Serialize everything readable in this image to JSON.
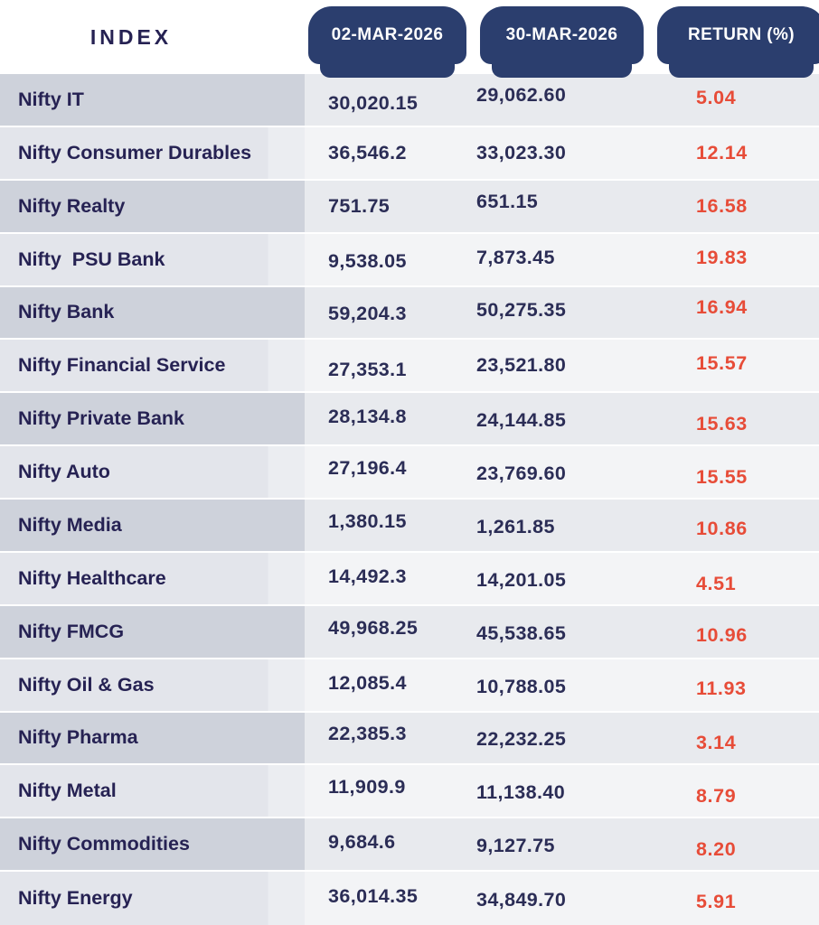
{
  "header": {
    "index_label": "INDEX",
    "columns": [
      "02-MAR-2026",
      "30-MAR-2026",
      "RETURN (%)"
    ]
  },
  "rows": [
    {
      "label": "Nifty IT",
      "start": "30,020.15",
      "end": "29,062.60",
      "ret": "5.04"
    },
    {
      "label": "Nifty Consumer Durables",
      "start": "36,546.2",
      "end": "33,023.30",
      "ret": "12.14"
    },
    {
      "label": "Nifty Realty",
      "start": "751.75",
      "end": "651.15",
      "ret": "16.58"
    },
    {
      "label": "Nifty  PSU Bank",
      "start": "9,538.05",
      "end": "7,873.45",
      "ret": "19.83"
    },
    {
      "label": "Nifty Bank",
      "start": "59,204.3",
      "end": "50,275.35",
      "ret": "16.94"
    },
    {
      "label": "Nifty Financial Service",
      "start": "27,353.1",
      "end": "23,521.80",
      "ret": "15.57"
    },
    {
      "label": "Nifty Private Bank",
      "start": "28,134.8",
      "end": "24,144.85",
      "ret": "15.63"
    },
    {
      "label": "Nifty Auto",
      "start": "27,196.4",
      "end": "23,769.60",
      "ret": "15.55"
    },
    {
      "label": "Nifty Media",
      "start": "1,380.15",
      "end": "1,261.85",
      "ret": "10.86"
    },
    {
      "label": "Nifty Healthcare",
      "start": "14,492.3",
      "end": "14,201.05",
      "ret": "4.51"
    },
    {
      "label": "Nifty FMCG",
      "start": "49,968.25",
      "end": "45,538.65",
      "ret": "10.96"
    },
    {
      "label": "Nifty Oil & Gas",
      "start": "12,085.4",
      "end": "10,788.05",
      "ret": "11.93"
    },
    {
      "label": "Nifty Pharma",
      "start": "22,385.3",
      "end": "22,232.25",
      "ret": "3.14"
    },
    {
      "label": "Nifty Metal",
      "start": "11,909.9",
      "end": "11,138.40",
      "ret": "8.79"
    },
    {
      "label": "Nifty Commodities",
      "start": "9,684.6",
      "end": "9,127.75",
      "ret": "8.20"
    },
    {
      "label": "Nifty Energy",
      "start": "36,014.35",
      "end": "34,849.70",
      "ret": "5.91"
    }
  ],
  "colors": {
    "pill_navy": "#2b3e6e",
    "label_navy": "#262253",
    "value_navy": "#2b2d56",
    "return_red": "#e74c38",
    "odd_index_bg": "#ced2db",
    "odd_value_bg": "#e8eaee",
    "even_index_bg": "#e3e5eb",
    "even_value_bg": "#f3f4f6"
  },
  "chart_data": {
    "type": "table",
    "title": "Nifty sector index levels and monthly return (%)",
    "columns": [
      "INDEX",
      "02-MAR-2026",
      "30-MAR-2026",
      "RETURN (%)"
    ],
    "rows": [
      [
        "Nifty IT",
        30020.15,
        29062.6,
        5.04
      ],
      [
        "Nifty Consumer Durables",
        36546.2,
        33023.3,
        12.14
      ],
      [
        "Nifty Realty",
        751.75,
        651.15,
        16.58
      ],
      [
        "Nifty PSU Bank",
        9538.05,
        7873.45,
        19.83
      ],
      [
        "Nifty Bank",
        59204.3,
        50275.35,
        16.94
      ],
      [
        "Nifty Financial Service",
        27353.1,
        23521.8,
        15.57
      ],
      [
        "Nifty Private Bank",
        28134.8,
        24144.85,
        15.63
      ],
      [
        "Nifty Auto",
        27196.4,
        23769.6,
        15.55
      ],
      [
        "Nifty Media",
        1380.15,
        1261.85,
        10.86
      ],
      [
        "Nifty Healthcare",
        14492.3,
        14201.05,
        4.51
      ],
      [
        "Nifty FMCG",
        49968.25,
        45538.65,
        10.96
      ],
      [
        "Nifty Oil & Gas",
        12085.4,
        10788.05,
        11.93
      ],
      [
        "Nifty Pharma",
        22385.3,
        22232.25,
        3.14
      ],
      [
        "Nifty Metal",
        11909.9,
        11138.4,
        8.79
      ],
      [
        "Nifty Commodities",
        9684.6,
        9127.75,
        8.2
      ],
      [
        "Nifty Energy",
        36014.35,
        34849.7,
        5.91
      ]
    ],
    "layout_hints": {
      "return_color": "#e74c38",
      "header_style": "navy pill tabs",
      "striped_rows": true
    }
  }
}
